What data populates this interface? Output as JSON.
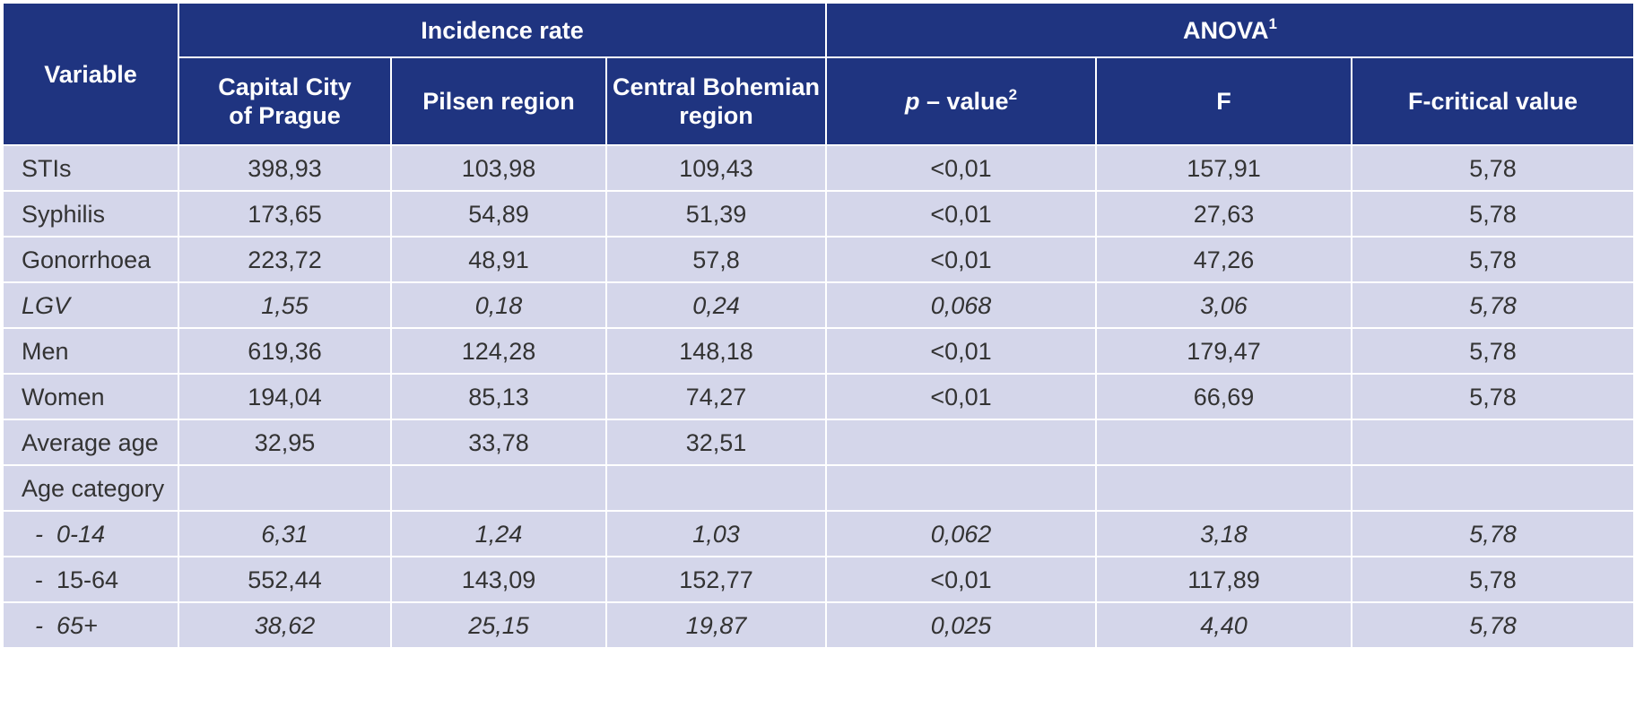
{
  "header": {
    "variable": "Variable",
    "group_incidence": "Incidence rate",
    "group_anova": "ANOVA",
    "group_anova_sup": "1",
    "col_prague_line1": "Capital City",
    "col_prague_line2": "of Prague",
    "col_pilsen": "Pilsen region",
    "col_central_line1": "Central Bohemian",
    "col_central_line2": "region",
    "col_p_italic": "p",
    "col_p_rest": " – value",
    "col_p_sup": "2",
    "col_f": "F",
    "col_fcrit": "F-critical value"
  },
  "rows": [
    {
      "label": "STIs",
      "prague": "398,93",
      "pilsen": "103,98",
      "central": "109,43",
      "p": "<0,01",
      "f": "157,91",
      "fcrit": "5,78"
    },
    {
      "label": "Syphilis",
      "prague": "173,65",
      "pilsen": "54,89",
      "central": "51,39",
      "p": "<0,01",
      "f": "27,63",
      "fcrit": "5,78"
    },
    {
      "label": "Gonorrhoea",
      "prague": "223,72",
      "pilsen": "48,91",
      "central": "57,8",
      "p": "<0,01",
      "f": "47,26",
      "fcrit": "5,78"
    },
    {
      "label": "LGV",
      "prague": "1,55",
      "pilsen": "0,18",
      "central": "0,24",
      "p": "0,068",
      "f": "3,06",
      "fcrit": "5,78"
    },
    {
      "label": "Men",
      "prague": "619,36",
      "pilsen": "124,28",
      "central": "148,18",
      "p": "<0,01",
      "f": "179,47",
      "fcrit": "5,78"
    },
    {
      "label": "Women",
      "prague": "194,04",
      "pilsen": "85,13",
      "central": "74,27",
      "p": "<0,01",
      "f": "66,69",
      "fcrit": "5,78"
    },
    {
      "label": "Average age",
      "prague": "32,95",
      "pilsen": "33,78",
      "central": "32,51",
      "p": "",
      "f": "",
      "fcrit": ""
    },
    {
      "label": "Age category",
      "prague": "",
      "pilsen": "",
      "central": "",
      "p": "",
      "f": "",
      "fcrit": ""
    },
    {
      "label": "  -  0-14",
      "prague": "6,31",
      "pilsen": "1,24",
      "central": "1,03",
      "p": "0,062",
      "f": "3,18",
      "fcrit": "5,78"
    },
    {
      "label": "  -  15-64",
      "prague": "552,44",
      "pilsen": "143,09",
      "central": "152,77",
      "p": "<0,01",
      "f": "117,89",
      "fcrit": "5,78"
    },
    {
      "label": "  -  65+",
      "prague": "38,62",
      "pilsen": "25,15",
      "central": "19,87",
      "p": "0,025",
      "f": "4,40",
      "fcrit": "5,78"
    }
  ]
}
